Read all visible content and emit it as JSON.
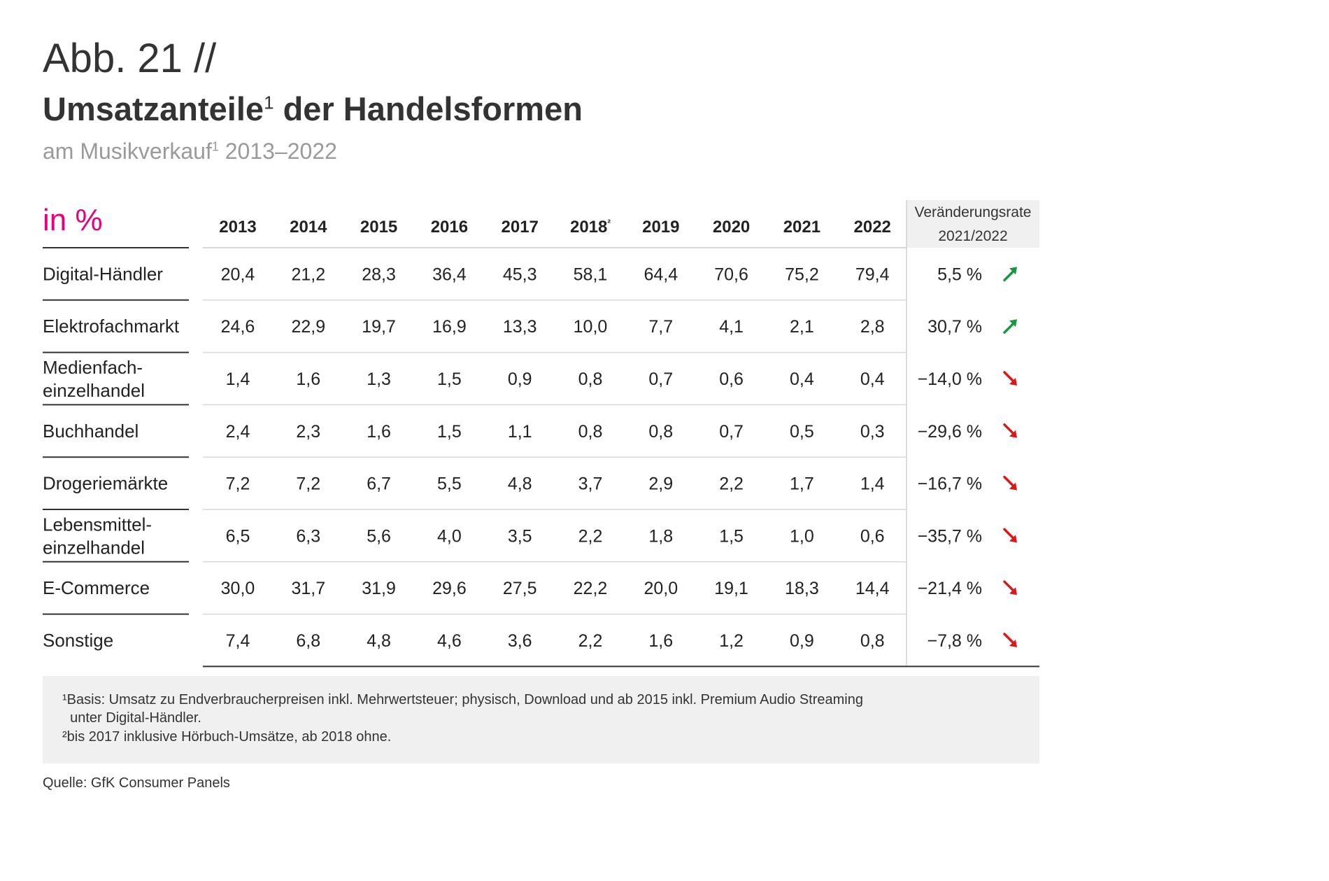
{
  "figure_label": "Abb. 21 //",
  "title": {
    "main": "Umsatzanteile",
    "sup": "1",
    "rest": " der Handelsformen"
  },
  "subtitle": {
    "main": "am Musikverkauf",
    "sup": "1",
    "rest": " 2013–2022"
  },
  "unit": "in %",
  "footnotes": [
    "¹Basis: Umsatz zu Endverbraucherpreisen inkl. Mehrwertsteuer; physisch, Download und ab 2015 inkl. Premium Audio Streaming",
    "  unter Digital-Händler.",
    "²bis 2017 inklusive Hörbuch-Umsätze, ab 2018 ohne."
  ],
  "source": "Quelle: GfK Consumer Panels",
  "colors": {
    "accent": "#e6007e",
    "up": "#1a9641",
    "down": "#d7191c",
    "header_bg": "#f0f0f0"
  },
  "chart_data": {
    "type": "table",
    "columns": [
      "2013",
      "2014",
      "2015",
      "2016",
      "2017",
      "2018²",
      "2019",
      "2020",
      "2021",
      "2022"
    ],
    "change_header": [
      "Veränderungsrate",
      "2021/2022"
    ],
    "rows": [
      {
        "label": [
          "Digital-Händler"
        ],
        "values": [
          "20,4",
          "21,2",
          "28,3",
          "36,4",
          "45,3",
          "58,1",
          "64,4",
          "70,6",
          "75,2",
          "79,4"
        ],
        "change": "5,5 %",
        "trend": "up"
      },
      {
        "label": [
          "Elektrofachmarkt"
        ],
        "values": [
          "24,6",
          "22,9",
          "19,7",
          "16,9",
          "13,3",
          "10,0",
          "7,7",
          "4,1",
          "2,1",
          "2,8"
        ],
        "change": "30,7 %",
        "trend": "up"
      },
      {
        "label": [
          "Medienfach-",
          "einzelhandel"
        ],
        "values": [
          "1,4",
          "1,6",
          "1,3",
          "1,5",
          "0,9",
          "0,8",
          "0,7",
          "0,6",
          "0,4",
          "0,4"
        ],
        "change": "−14,0 %",
        "trend": "down"
      },
      {
        "label": [
          "Buchhandel"
        ],
        "values": [
          "2,4",
          "2,3",
          "1,6",
          "1,5",
          "1,1",
          "0,8",
          "0,8",
          "0,7",
          "0,5",
          "0,3"
        ],
        "change": "−29,6 %",
        "trend": "down"
      },
      {
        "label": [
          "Drogeriemärkte"
        ],
        "values": [
          "7,2",
          "7,2",
          "6,7",
          "5,5",
          "4,8",
          "3,7",
          "2,9",
          "2,2",
          "1,7",
          "1,4"
        ],
        "change": "−16,7 %",
        "trend": "down"
      },
      {
        "label": [
          "Lebensmittel-",
          "einzelhandel"
        ],
        "values": [
          "6,5",
          "6,3",
          "5,6",
          "4,0",
          "3,5",
          "2,2",
          "1,8",
          "1,5",
          "1,0",
          "0,6"
        ],
        "change": "−35,7 %",
        "trend": "down"
      },
      {
        "label": [
          "E-Commerce"
        ],
        "values": [
          "30,0",
          "31,7",
          "31,9",
          "29,6",
          "27,5",
          "22,2",
          "20,0",
          "19,1",
          "18,3",
          "14,4"
        ],
        "change": "−21,4 %",
        "trend": "down"
      },
      {
        "label": [
          "Sonstige"
        ],
        "values": [
          "7,4",
          "6,8",
          "4,8",
          "4,6",
          "3,6",
          "2,2",
          "1,6",
          "1,2",
          "0,9",
          "0,8"
        ],
        "change": "−7,8 %",
        "trend": "down"
      }
    ]
  }
}
